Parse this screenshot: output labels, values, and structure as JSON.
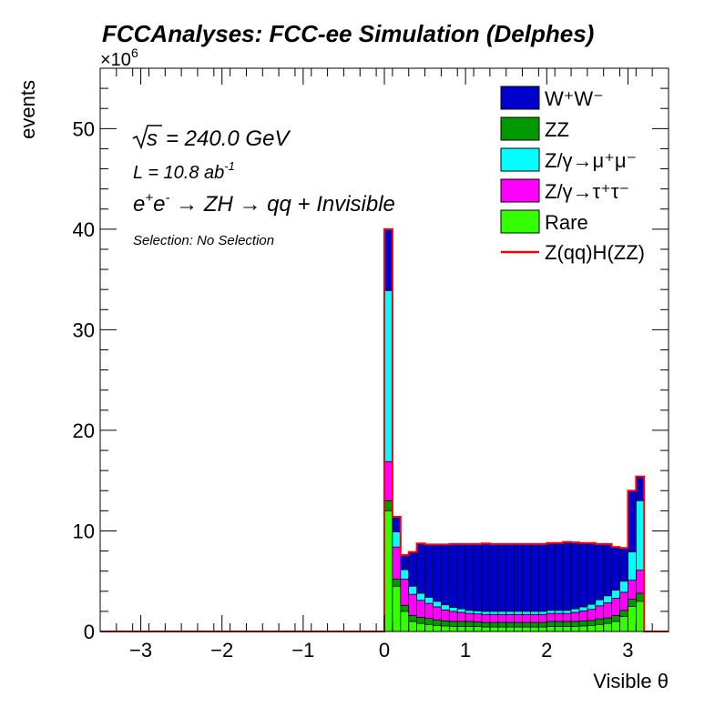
{
  "chart_data": {
    "type": "stacked-histogram",
    "title": "FCCAnalyses: FCC-ee Simulation (Delphes)",
    "xlabel": "Visible θ",
    "ylabel": "events",
    "y_multiplier": "×10",
    "y_multiplier_exp": "6",
    "xlim": [
      -3.5,
      3.5
    ],
    "ylim": [
      0,
      56
    ],
    "x_ticks": [
      -3,
      -2,
      -1,
      0,
      1,
      2,
      3
    ],
    "x_tick_labels": [
      "−3",
      "−2",
      "−1",
      "0",
      "1",
      "2",
      "3"
    ],
    "y_ticks": [
      0,
      10,
      20,
      30,
      40,
      50
    ],
    "y_tick_labels": [
      "0",
      "10",
      "20",
      "30",
      "40",
      "50"
    ],
    "annotations": {
      "sqrt_s_root": "s",
      "sqrt_s_value": "= 240.0 GeV",
      "lumi_main": "L = 10.8 ab",
      "lumi_exp": "-1",
      "process_e1": "e",
      "process_plus": "+",
      "process_e2": "e",
      "process_minus": "-",
      "process_rest": " → ZH → qq + Invisible",
      "selection": "Selection: No Selection"
    },
    "legend_position": "top-right",
    "bin_edges": [
      0.0,
      0.1,
      0.2,
      0.3,
      0.4,
      0.5,
      0.6,
      0.7,
      0.8,
      0.9,
      1.0,
      1.1,
      1.2,
      1.3,
      1.4,
      1.5,
      1.6,
      1.7,
      1.8,
      1.9,
      2.0,
      2.1,
      2.2,
      2.3,
      2.4,
      2.5,
      2.6,
      2.7,
      2.8,
      2.9,
      3.0,
      3.1,
      3.2
    ],
    "series": [
      {
        "name": "Rare",
        "legend_label": "Rare",
        "color": "#33ff00",
        "values": [
          12.0,
          4.5,
          2.0,
          1.0,
          0.8,
          0.7,
          0.6,
          0.55,
          0.5,
          0.5,
          0.5,
          0.5,
          0.45,
          0.45,
          0.45,
          0.45,
          0.45,
          0.45,
          0.45,
          0.45,
          0.5,
          0.5,
          0.5,
          0.5,
          0.55,
          0.6,
          0.7,
          0.8,
          1.0,
          1.5,
          2.5,
          3.0
        ]
      },
      {
        "name": "ZZ",
        "legend_label": "ZZ",
        "color": "#009900",
        "values": [
          1.0,
          0.7,
          0.6,
          0.6,
          0.6,
          0.6,
          0.55,
          0.5,
          0.5,
          0.5,
          0.5,
          0.45,
          0.45,
          0.45,
          0.45,
          0.45,
          0.45,
          0.45,
          0.45,
          0.45,
          0.5,
          0.5,
          0.5,
          0.5,
          0.5,
          0.5,
          0.55,
          0.55,
          0.6,
          0.6,
          0.7,
          0.8
        ]
      },
      {
        "name": "Z/γ→τ+τ-",
        "legend_label": "Z/γ→τ⁺τ⁻",
        "color": "#ff00ff",
        "values": [
          3.9,
          3.2,
          2.6,
          2.1,
          1.7,
          1.5,
          1.3,
          1.1,
          1.0,
          0.9,
          0.8,
          0.8,
          0.8,
          0.8,
          0.8,
          0.8,
          0.8,
          0.8,
          0.8,
          0.8,
          0.8,
          0.8,
          0.8,
          0.9,
          1.0,
          1.1,
          1.3,
          1.5,
          1.7,
          1.8,
          1.9,
          2.3
        ]
      },
      {
        "name": "Z/γ→μ+μ-",
        "legend_label": "Z/γ→μ⁺μ⁻",
        "color": "#00ffff",
        "values": [
          17.0,
          1.5,
          0.95,
          0.8,
          0.7,
          0.6,
          0.55,
          0.5,
          0.4,
          0.35,
          0.3,
          0.3,
          0.3,
          0.3,
          0.3,
          0.3,
          0.3,
          0.3,
          0.3,
          0.3,
          0.3,
          0.3,
          0.3,
          0.35,
          0.4,
          0.5,
          0.6,
          0.7,
          0.8,
          1.1,
          2.8,
          6.9
        ]
      },
      {
        "name": "W+W-",
        "legend_label": "W⁺W⁻",
        "color": "#0000cc",
        "values": [
          6.1,
          1.5,
          1.45,
          3.4,
          4.95,
          5.25,
          5.65,
          6.0,
          6.3,
          6.45,
          6.6,
          6.65,
          6.75,
          6.7,
          6.7,
          6.7,
          6.7,
          6.7,
          6.7,
          6.7,
          6.7,
          6.7,
          6.8,
          6.6,
          6.35,
          6.1,
          5.55,
          5.15,
          4.3,
          3.3,
          6.1,
          2.4
        ]
      }
    ],
    "signal": {
      "name": "Z(qq)H(ZZ)",
      "legend_label": "Z(qq)H(ZZ)",
      "color": "#ff0000"
    }
  }
}
